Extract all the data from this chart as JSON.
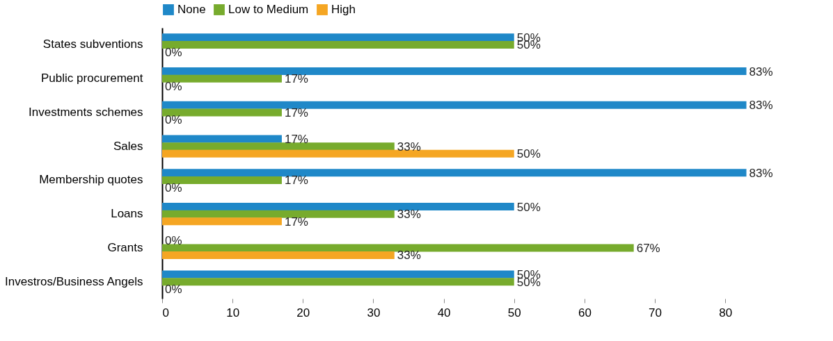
{
  "chart_data": {
    "type": "bar",
    "orientation": "horizontal",
    "categories": [
      "States subventions",
      "Public procurement",
      "Investments schemes",
      "Sales",
      "Membership quotes",
      "Loans",
      "Grants",
      "Investros/Business Angels"
    ],
    "series": [
      {
        "name": "None",
        "color": "#1f88c8",
        "values": [
          50,
          83,
          83,
          17,
          83,
          50,
          0,
          50
        ],
        "value_labels": [
          "50%",
          "83%",
          "83%",
          "17%",
          "83%",
          "50%",
          "0%",
          "50%"
        ]
      },
      {
        "name": "Low to Medium",
        "color": "#77ab2d",
        "values": [
          50,
          17,
          17,
          33,
          17,
          33,
          67,
          50
        ],
        "value_labels": [
          "50%",
          "17%",
          "17%",
          "33%",
          "17%",
          "33%",
          "67%",
          "50%"
        ]
      },
      {
        "name": "High",
        "color": "#f5a623",
        "values": [
          0,
          0,
          0,
          50,
          0,
          17,
          33,
          0
        ],
        "value_labels": [
          "0%",
          "0%",
          "0%",
          "50%",
          "0%",
          "17%",
          "33%",
          "0%"
        ]
      }
    ],
    "xlim": [
      0,
      87
    ],
    "xticks": [
      0,
      10,
      20,
      30,
      40,
      50,
      60,
      70,
      80
    ],
    "grid": false,
    "legend": "top"
  }
}
